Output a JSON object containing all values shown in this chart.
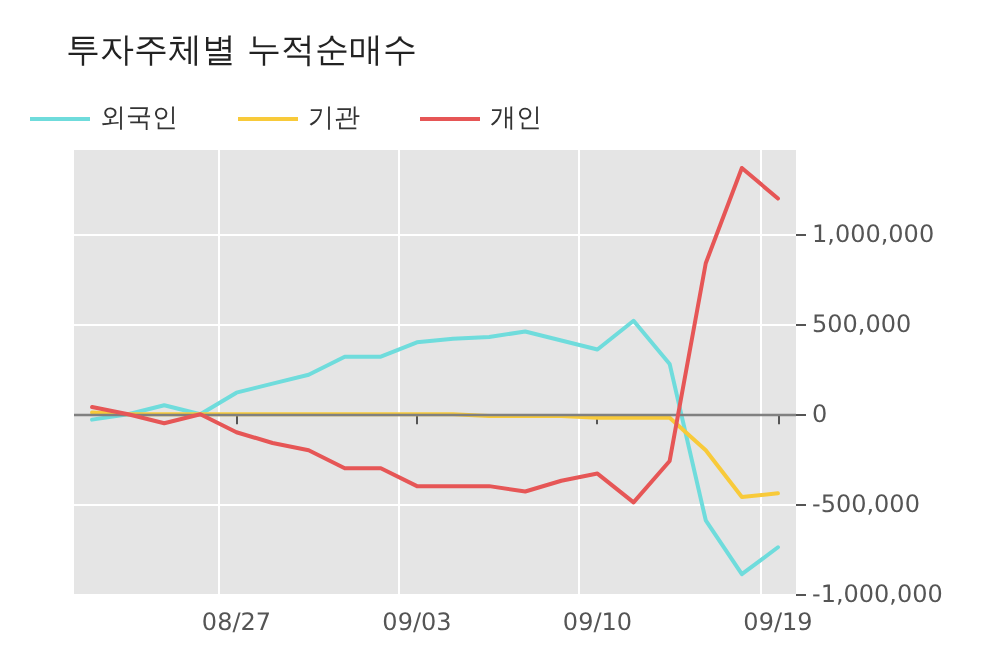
{
  "chart_data": {
    "type": "line",
    "title": "투자주체별 누적순매수",
    "categories": [
      null,
      null,
      null,
      null,
      "08/27",
      null,
      null,
      null,
      null,
      "09/03",
      null,
      null,
      null,
      null,
      "09/10",
      null,
      null,
      null,
      null,
      "09/19"
    ],
    "series": [
      {
        "name": "외국인",
        "color": "#6fdcdc",
        "values": [
          -30000,
          0,
          50000,
          0,
          120000,
          170000,
          220000,
          320000,
          320000,
          400000,
          420000,
          430000,
          460000,
          410000,
          360000,
          520000,
          280000,
          -590000,
          -890000,
          -740000
        ]
      },
      {
        "name": "기관",
        "color": "#f8ca3a",
        "values": [
          10000,
          0,
          0,
          0,
          0,
          0,
          0,
          0,
          0,
          0,
          0,
          -10000,
          -10000,
          -10000,
          -20000,
          -20000,
          -20000,
          -200000,
          -460000,
          -440000
        ]
      },
      {
        "name": "개인",
        "color": "#e65656",
        "values": [
          40000,
          0,
          -50000,
          0,
          -100000,
          -160000,
          -200000,
          -300000,
          -300000,
          -400000,
          -400000,
          -400000,
          -430000,
          -370000,
          -330000,
          -490000,
          -260000,
          840000,
          1370000,
          1200000
        ]
      }
    ],
    "ylim": [
      -1000000,
      1470000
    ],
    "yticks": [
      {
        "value": -1000000,
        "label": "-1,000,000"
      },
      {
        "value": -500000,
        "label": "-500,000"
      },
      0,
      {
        "value": 500000,
        "label": "500,000"
      },
      {
        "value": 1000000,
        "label": "1,000,000"
      }
    ],
    "ref_lines": [
      {
        "axis": "y",
        "value": 0,
        "color": "#808080"
      }
    ],
    "grid": true,
    "legend": "top left",
    "marker": "none",
    "line_style": "solid"
  }
}
